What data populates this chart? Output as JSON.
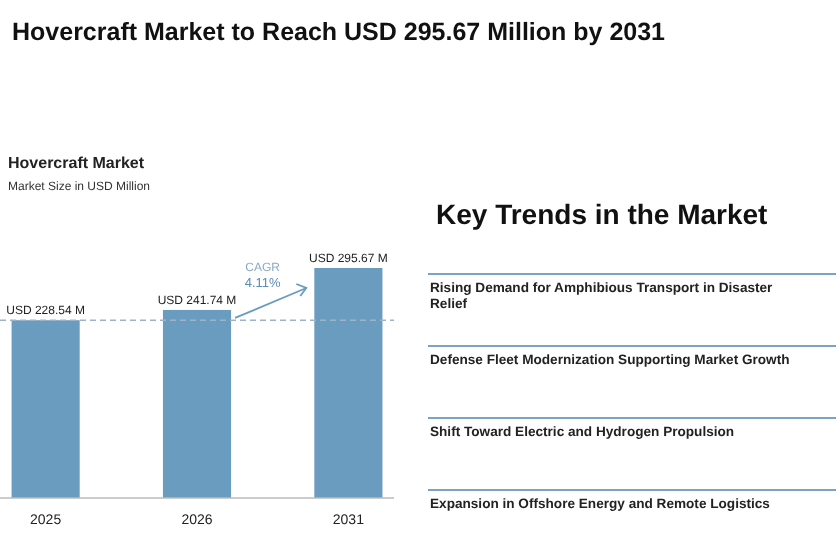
{
  "chart_data": {
    "type": "bar",
    "title": "Hovercraft Market to Reach USD 295.67 Million by 2031",
    "subtitle": "Hovercraft Market",
    "categories": [
      "2025",
      "2026",
      "2031"
    ],
    "values": [
      228.54,
      241.74,
      295.67
    ],
    "value_labels": [
      "USD 228.54 M",
      "USD 241.74 M",
      "USD 295.67 M"
    ],
    "color": "#6a9cc0",
    "ref_lines": [
      {
        "axis": "y",
        "value": 228.54,
        "color": "#9db4c8",
        "line_style": "dashed"
      }
    ],
    "annotations": [
      "Market Size in USD Million",
      "CAGR",
      "4.11%",
      "Key Trends in the Market",
      "Rising Demand for Amphibious Transport in Disaster Relief",
      "Defense Fleet Modernization Supporting Market Growth",
      "Shift Toward Electric and Hydrogen Propulsion",
      "Expansion in Offshore Energy and Remote Logistics"
    ]
  }
}
